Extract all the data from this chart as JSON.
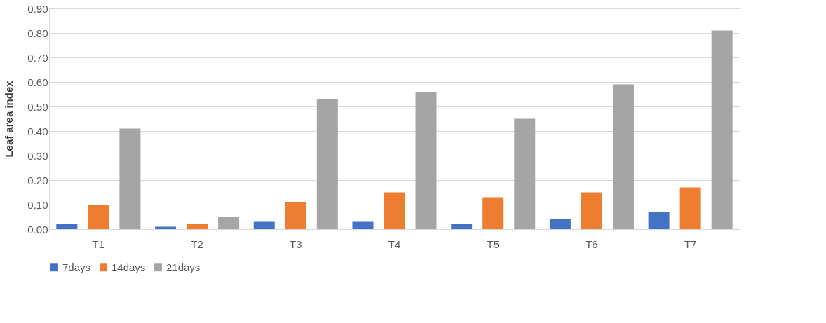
{
  "chart_data": {
    "type": "bar",
    "ylabel": "Leaf area index",
    "categories": [
      "T1",
      "T2",
      "T3",
      "T4",
      "T5",
      "T6",
      "T7"
    ],
    "series": [
      {
        "name": "7days",
        "color": "#4472c4",
        "values": [
          0.02,
          0.01,
          0.03,
          0.03,
          0.02,
          0.04,
          0.07
        ]
      },
      {
        "name": "14days",
        "color": "#ed7d31",
        "values": [
          0.1,
          0.02,
          0.11,
          0.15,
          0.13,
          0.15,
          0.17
        ]
      },
      {
        "name": "21days",
        "color": "#a5a5a5",
        "values": [
          0.41,
          0.05,
          0.53,
          0.56,
          0.45,
          0.59,
          0.81
        ]
      }
    ],
    "ylim": [
      0,
      0.9
    ],
    "yticks": [
      {
        "value": 0,
        "label": "0.00"
      },
      {
        "value": 0.1,
        "label": "0.10"
      },
      {
        "value": 0.2,
        "label": "0.20"
      },
      {
        "value": 0.3,
        "label": "0.30"
      },
      {
        "value": 0.4,
        "label": "0.40"
      },
      {
        "value": 0.5,
        "label": "0.50"
      },
      {
        "value": 0.6,
        "label": "0.60"
      },
      {
        "value": 0.7,
        "label": "0.70"
      },
      {
        "value": 0.8,
        "label": "0.80"
      },
      {
        "value": 0.9,
        "label": "0.90"
      }
    ],
    "grid": "y",
    "legend": "bottom"
  }
}
